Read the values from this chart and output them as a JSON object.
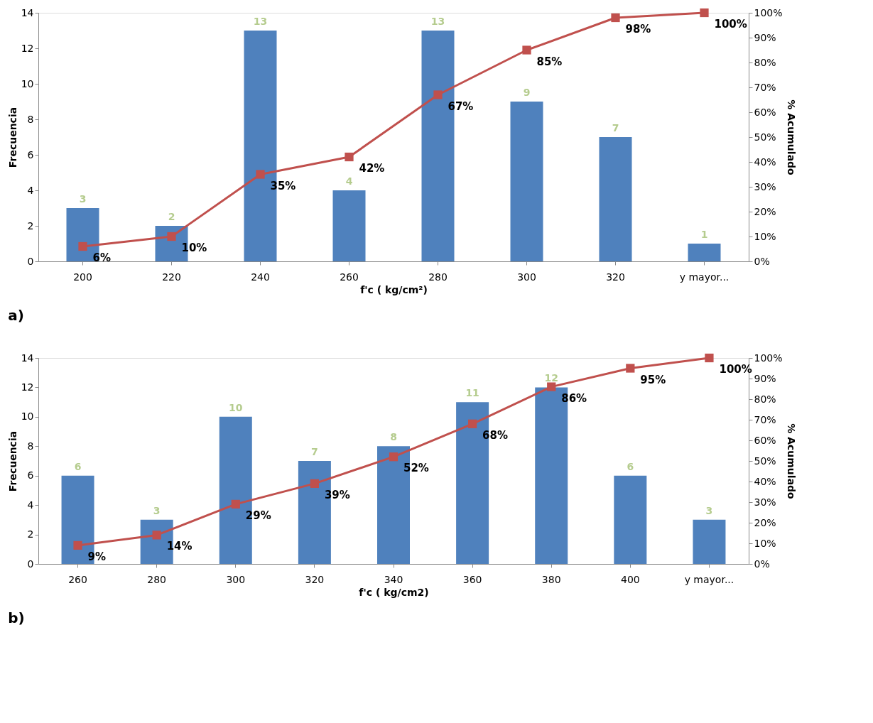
{
  "chart_data": [
    {
      "type": "bar",
      "xlabel": "f'c ( kg/cm²)",
      "ylabel": "Frecuencia",
      "y2label": "% Acumulado",
      "annotations": [
        "a)"
      ],
      "categories": [
        "200",
        "220",
        "240",
        "260",
        "280",
        "300",
        "320",
        "y mayor..."
      ],
      "series": [
        {
          "color": "#4f81bd",
          "values": [
            3,
            2,
            13,
            4,
            13,
            9,
            7,
            1
          ]
        },
        {
          "type": "line",
          "axis": "y2",
          "color": "#c0504d",
          "marker": "square",
          "values": [
            6,
            10,
            35,
            42,
            67,
            85,
            98,
            100
          ],
          "value_labels": [
            "6%",
            "10%",
            "35%",
            "42%",
            "67%",
            "85%",
            "98%",
            "100%"
          ]
        }
      ],
      "ylim": [
        0,
        14
      ],
      "yticks": [
        0,
        2,
        4,
        6,
        8,
        10,
        12,
        14
      ],
      "y2lim": [
        0,
        100
      ],
      "y2ticks": [
        {
          "value": 0,
          "label": "0%"
        },
        {
          "value": 10,
          "label": "10%"
        },
        {
          "value": 20,
          "label": "20%"
        },
        {
          "value": 30,
          "label": "30%"
        },
        {
          "value": 40,
          "label": "40%"
        },
        {
          "value": 50,
          "label": "50%"
        },
        {
          "value": 60,
          "label": "60%"
        },
        {
          "value": 70,
          "label": "70%"
        },
        {
          "value": 80,
          "label": "80%"
        },
        {
          "value": 90,
          "label": "90%"
        },
        {
          "value": 100,
          "label": "100%"
        }
      ],
      "data_labels": true,
      "grid": false
    },
    {
      "type": "bar",
      "xlabel": "f'c ( kg/cm2)",
      "ylabel": "Frecuencia",
      "y2label": "% Acumulado",
      "annotations": [
        "b)"
      ],
      "categories": [
        "260",
        "280",
        "300",
        "320",
        "340",
        "360",
        "380",
        "400",
        "y mayor..."
      ],
      "series": [
        {
          "color": "#4f81bd",
          "values": [
            6,
            3,
            10,
            7,
            8,
            11,
            12,
            6,
            3
          ]
        },
        {
          "type": "line",
          "axis": "y2",
          "color": "#c0504d",
          "marker": "square",
          "values": [
            9,
            14,
            29,
            39,
            52,
            68,
            86,
            95,
            100
          ],
          "value_labels": [
            "9%",
            "14%",
            "29%",
            "39%",
            "52%",
            "68%",
            "86%",
            "95%",
            "100%"
          ]
        }
      ],
      "ylim": [
        0,
        14
      ],
      "yticks": [
        0,
        2,
        4,
        6,
        8,
        10,
        12,
        14
      ],
      "y2lim": [
        0,
        100
      ],
      "y2ticks": [
        {
          "value": 0,
          "label": "0%"
        },
        {
          "value": 10,
          "label": "10%"
        },
        {
          "value": 20,
          "label": "20%"
        },
        {
          "value": 30,
          "label": "30%"
        },
        {
          "value": 40,
          "label": "40%"
        },
        {
          "value": 50,
          "label": "50%"
        },
        {
          "value": 60,
          "label": "60%"
        },
        {
          "value": 70,
          "label": "70%"
        },
        {
          "value": 80,
          "label": "80%"
        },
        {
          "value": 90,
          "label": "90%"
        },
        {
          "value": 100,
          "label": "100%"
        }
      ],
      "data_labels": true,
      "grid": false
    }
  ]
}
